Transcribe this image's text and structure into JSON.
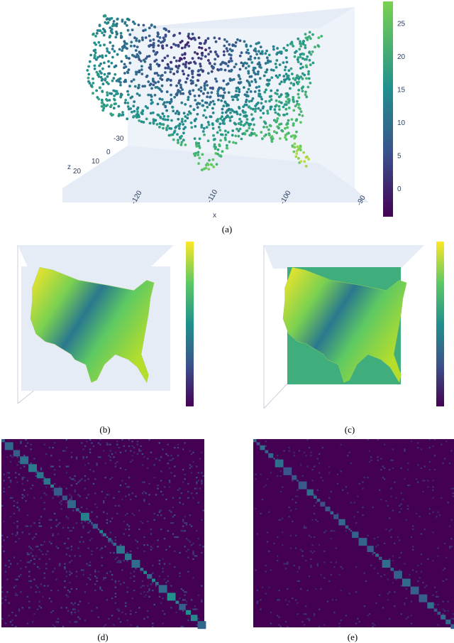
{
  "panels": [
    {
      "label": "(a)",
      "colorbar_ticks": [
        0,
        5,
        10,
        15,
        20,
        25
      ],
      "x_axis_label": "x",
      "x_ticks": [
        -120,
        -110,
        -100,
        -90
      ],
      "z_axis_label": "z",
      "z_ticks": [
        20,
        10,
        0,
        -30
      ]
    },
    {
      "label": "(b)"
    },
    {
      "label": "(c)"
    },
    {
      "label": "(d)"
    },
    {
      "label": "(e)"
    }
  ]
}
